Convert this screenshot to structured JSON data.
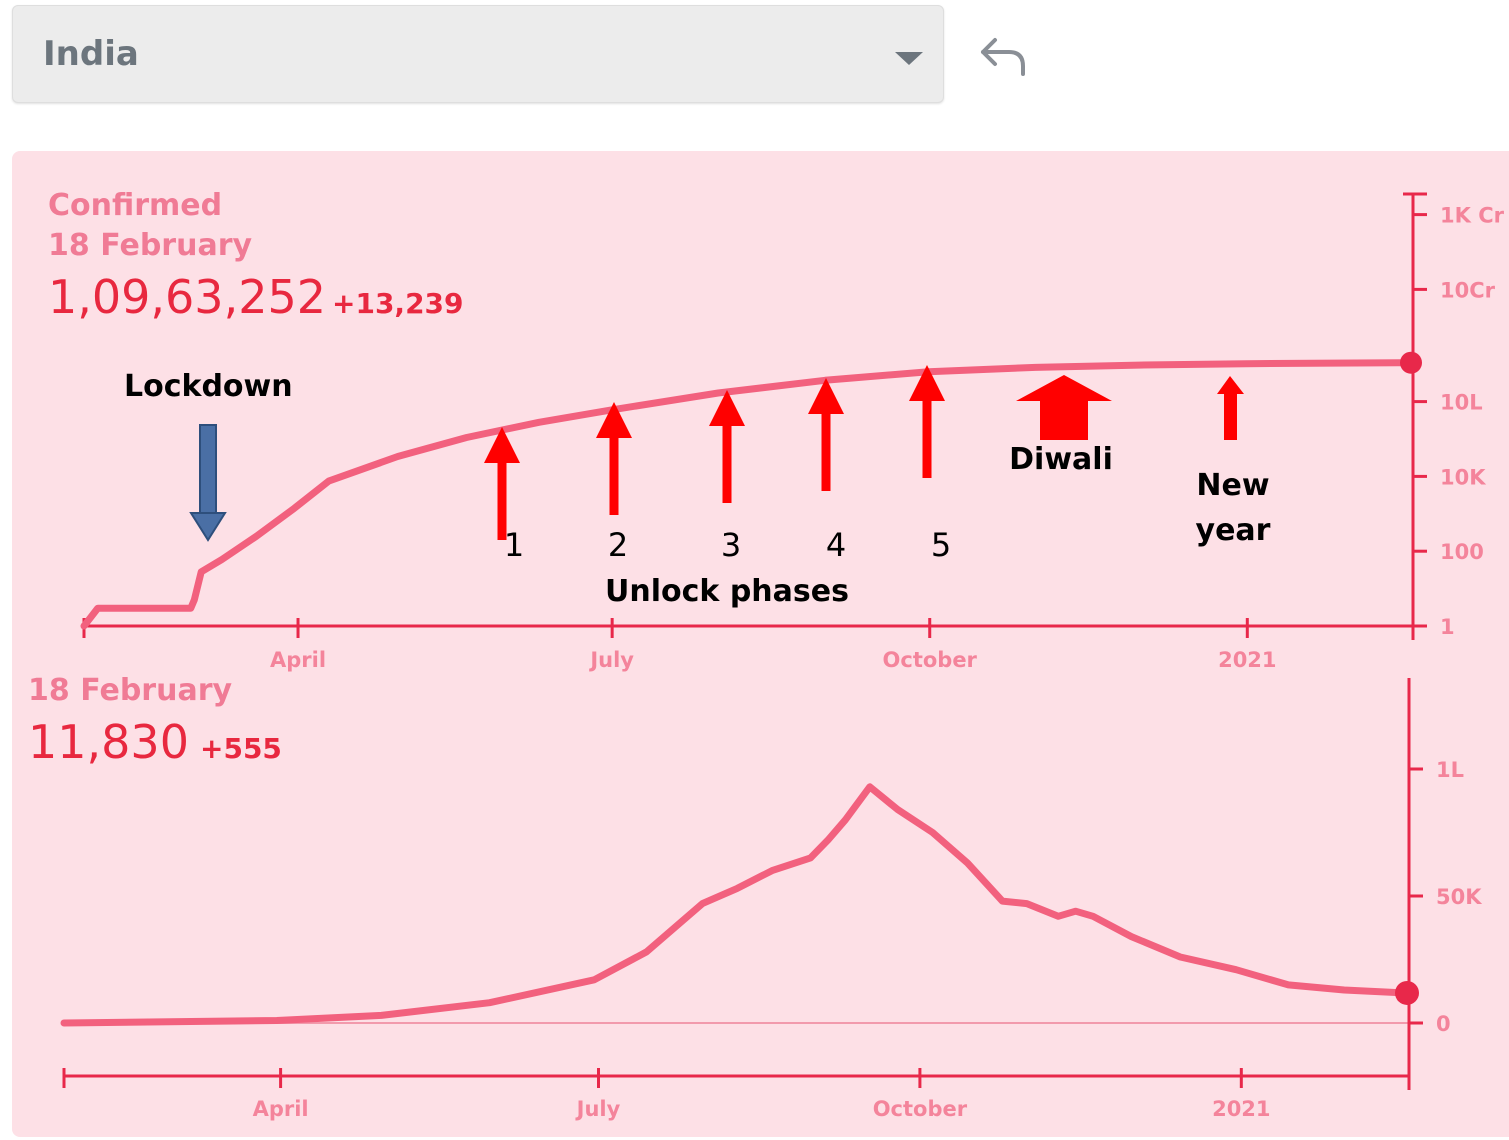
{
  "dropdown": {
    "value": "India"
  },
  "undo_icon": "undo-arrow-icon",
  "colors": {
    "line": "#f2617e",
    "axis": "#e8284a",
    "panel_bg": "#fde0e6",
    "header_value": "#e8283f",
    "arrow_red": "#ff0000",
    "arrow_blue": "#4a6fa5"
  },
  "top_chart": {
    "label": "Confirmed",
    "date": "18 February",
    "value": "1,09,63,252",
    "delta": "+13,239"
  },
  "bottom_chart": {
    "date": "18 February",
    "value": "11,830",
    "delta": "+555"
  },
  "annotations": {
    "lockdown": "Lockdown",
    "unlock_phases": "Unlock phases",
    "phases": [
      "1",
      "2",
      "3",
      "4",
      "5"
    ],
    "diwali": "Diwali",
    "new_year_line1": "New",
    "new_year_line2": "year"
  },
  "chart_data": [
    {
      "type": "line",
      "title": "Confirmed",
      "y_scale": "log",
      "x_ticks": [
        "April",
        "July",
        "October",
        "2021"
      ],
      "y_ticks": [
        "1K Cr",
        "10Cr",
        "10L",
        "10K",
        "100",
        "1"
      ],
      "series": [
        {
          "x": [
            "2020-01-30",
            "2020-02-03",
            "2020-03-01",
            "2020-03-02",
            "2020-03-04",
            "2020-03-10",
            "2020-03-20",
            "2020-03-31",
            "2020-04-10",
            "2020-04-30",
            "2020-05-20",
            "2020-06-10",
            "2020-07-01",
            "2020-08-01",
            "2020-09-01",
            "2020-10-01",
            "2020-11-01",
            "2020-12-01",
            "2021-01-01",
            "2021-02-18"
          ],
          "y": [
            1,
            3,
            3,
            5,
            28,
            60,
            250,
            1400,
            7500,
            34000,
            110000,
            280000,
            600000,
            1700000,
            3700000,
            6300000,
            8200000,
            9450000,
            10300000,
            10963252
          ]
        }
      ]
    },
    {
      "type": "line",
      "title": "",
      "y_ticks": [
        "1L",
        "50K",
        "0"
      ],
      "x_ticks": [
        "April",
        "July",
        "October",
        "2021"
      ],
      "series": [
        {
          "x": [
            "2020-01-30",
            "2020-03-31",
            "2020-04-30",
            "2020-05-31",
            "2020-06-30",
            "2020-07-15",
            "2020-07-31",
            "2020-08-10",
            "2020-08-20",
            "2020-08-31",
            "2020-09-05",
            "2020-09-10",
            "2020-09-17",
            "2020-09-25",
            "2020-10-05",
            "2020-10-15",
            "2020-10-25",
            "2020-11-01",
            "2020-11-10",
            "2020-11-15",
            "2020-11-20",
            "2020-12-01",
            "2020-12-15",
            "2020-12-31",
            "2021-01-15",
            "2021-01-31",
            "2021-02-18"
          ],
          "y": [
            0,
            1000,
            3000,
            8000,
            17000,
            28000,
            47000,
            53000,
            60000,
            65000,
            72000,
            80000,
            93000,
            84000,
            75000,
            63000,
            48000,
            47000,
            42000,
            44000,
            42000,
            34000,
            26000,
            21000,
            15000,
            13000,
            11830
          ]
        }
      ]
    }
  ]
}
